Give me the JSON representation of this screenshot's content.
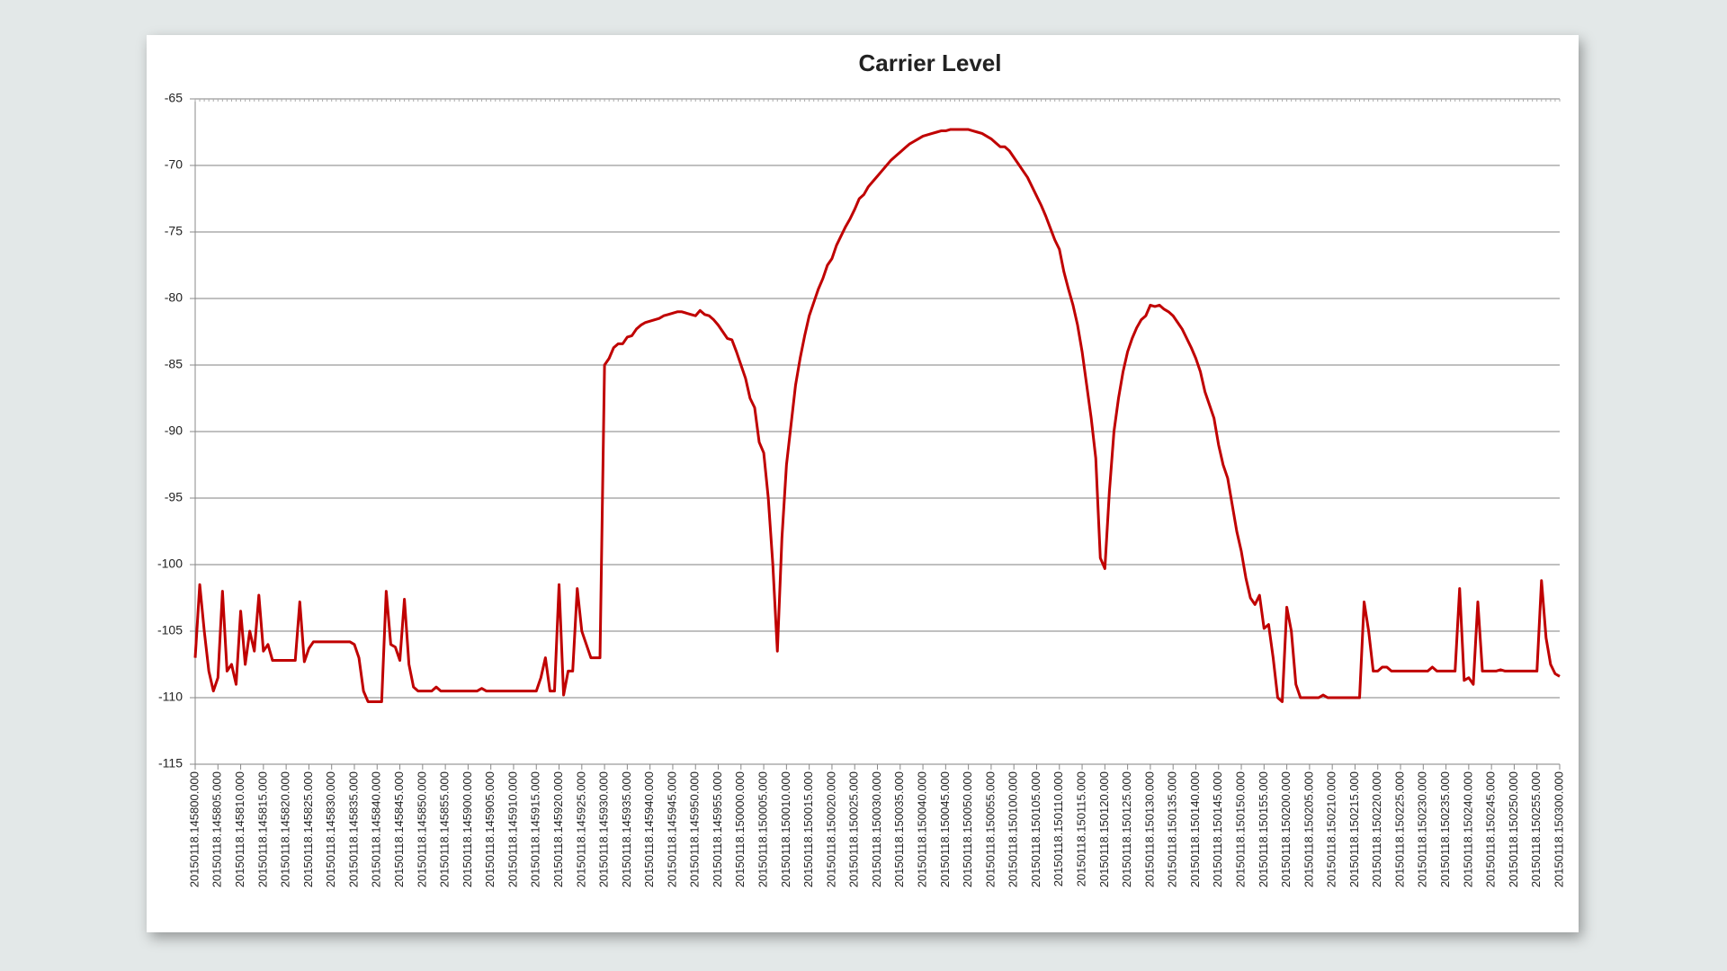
{
  "chart_data": {
    "type": "line",
    "title": "Carrier Level",
    "color": "#c00000",
    "ylim": [
      -115,
      -65
    ],
    "yticks": [
      -115,
      -110,
      -105,
      -100,
      -95,
      -90,
      -85,
      -80,
      -75,
      -70,
      -65
    ],
    "grid": true,
    "categories": [
      "20150118.145800.000",
      null,
      null,
      null,
      null,
      "20150118.145805.000",
      null,
      null,
      null,
      null,
      "20150118.145810.000",
      null,
      null,
      null,
      null,
      "20150118.145815.000",
      null,
      null,
      null,
      null,
      "20150118.145820.000",
      null,
      null,
      null,
      null,
      "20150118.145825.000",
      null,
      null,
      null,
      null,
      "20150118.145830.000",
      null,
      null,
      null,
      null,
      "20150118.145835.000",
      null,
      null,
      null,
      null,
      "20150118.145840.000",
      null,
      null,
      null,
      null,
      "20150118.145845.000",
      null,
      null,
      null,
      null,
      "20150118.145850.000",
      null,
      null,
      null,
      null,
      "20150118.145855.000",
      null,
      null,
      null,
      null,
      "20150118.145900.000",
      null,
      null,
      null,
      null,
      "20150118.145905.000",
      null,
      null,
      null,
      null,
      "20150118.145910.000",
      null,
      null,
      null,
      null,
      "20150118.145915.000",
      null,
      null,
      null,
      null,
      "20150118.145920.000",
      null,
      null,
      null,
      null,
      "20150118.145925.000",
      null,
      null,
      null,
      null,
      "20150118.145930.000",
      null,
      null,
      null,
      null,
      "20150118.145935.000",
      null,
      null,
      null,
      null,
      "20150118.145940.000",
      null,
      null,
      null,
      null,
      "20150118.145945.000",
      null,
      null,
      null,
      null,
      "20150118.145950.000",
      null,
      null,
      null,
      null,
      "20150118.145955.000",
      null,
      null,
      null,
      null,
      "20150118.150000.000",
      null,
      null,
      null,
      null,
      "20150118.150005.000",
      null,
      null,
      null,
      null,
      "20150118.150010.000",
      null,
      null,
      null,
      null,
      "20150118.150015.000",
      null,
      null,
      null,
      null,
      "20150118.150020.000",
      null,
      null,
      null,
      null,
      "20150118.150025.000",
      null,
      null,
      null,
      null,
      "20150118.150030.000",
      null,
      null,
      null,
      null,
      "20150118.150035.000",
      null,
      null,
      null,
      null,
      "20150118.150040.000",
      null,
      null,
      null,
      null,
      "20150118.150045.000",
      null,
      null,
      null,
      null,
      "20150118.150050.000",
      null,
      null,
      null,
      null,
      "20150118.150055.000",
      null,
      null,
      null,
      null,
      "20150118.150100.000",
      null,
      null,
      null,
      null,
      "20150118.150105.000",
      null,
      null,
      null,
      null,
      "20150118.150110.000",
      null,
      null,
      null,
      null,
      "20150118.150115.000",
      null,
      null,
      null,
      null,
      "20150118.150120.000",
      null,
      null,
      null,
      null,
      "20150118.150125.000",
      null,
      null,
      null,
      null,
      "20150118.150130.000",
      null,
      null,
      null,
      null,
      "20150118.150135.000",
      null,
      null,
      null,
      null,
      "20150118.150140.000",
      null,
      null,
      null,
      null,
      "20150118.150145.000",
      null,
      null,
      null,
      null,
      "20150118.150150.000",
      null,
      null,
      null,
      null,
      "20150118.150155.000",
      null,
      null,
      null,
      null,
      "20150118.150200.000",
      null,
      null,
      null,
      null,
      "20150118.150205.000",
      null,
      null,
      null,
      null,
      "20150118.150210.000",
      null,
      null,
      null,
      null,
      "20150118.150215.000",
      null,
      null,
      null,
      null,
      "20150118.150220.000",
      null,
      null,
      null,
      null,
      "20150118.150225.000",
      null,
      null,
      null,
      null,
      "20150118.150230.000",
      null,
      null,
      null,
      null,
      "20150118.150235.000",
      null,
      null,
      null,
      null,
      "20150118.150240.000",
      null,
      null,
      null,
      null,
      "20150118.150245.000",
      null,
      null,
      null,
      null,
      "20150118.150250.000",
      null,
      null,
      null,
      null,
      "20150118.150255.000",
      null,
      null,
      null,
      null,
      "20150118.150300.000"
    ],
    "values": [
      -107,
      -101.5,
      -105,
      -108,
      -109.5,
      -108.5,
      -102,
      -108,
      -107.5,
      -109,
      -103.5,
      -107.5,
      -105,
      -106.5,
      -102.3,
      -106.5,
      -106,
      -107.2,
      -107.2,
      -107.2,
      -107.2,
      -107.2,
      -107.2,
      -102.8,
      -107.3,
      -106.3,
      -105.8,
      -105.8,
      -105.8,
      -105.8,
      -105.8,
      -105.8,
      -105.8,
      -105.8,
      -105.8,
      -106,
      -107,
      -109.5,
      -110.3,
      -110.3,
      -110.3,
      -110.3,
      -102,
      -106,
      -106.2,
      -107.2,
      -102.6,
      -107.5,
      -109.2,
      -109.5,
      -109.5,
      -109.5,
      -109.5,
      -109.2,
      -109.5,
      -109.5,
      -109.5,
      -109.5,
      -109.5,
      -109.5,
      -109.5,
      -109.5,
      -109.5,
      -109.3,
      -109.5,
      -109.5,
      -109.5,
      -109.5,
      -109.5,
      -109.5,
      -109.5,
      -109.5,
      -109.5,
      -109.5,
      -109.5,
      -109.5,
      -108.5,
      -107,
      -109.5,
      -109.5,
      -101.5,
      -109.8,
      -108,
      -108,
      -101.8,
      -105,
      -106,
      -107,
      -107,
      -107,
      -85,
      -84.5,
      -83.7,
      -83.4,
      -83.4,
      -82.9,
      -82.8,
      -82.3,
      -82,
      -81.8,
      -81.7,
      -81.6,
      -81.5,
      -81.3,
      -81.2,
      -81.1,
      -81,
      -81,
      -81.1,
      -81.2,
      -81.3,
      -80.9,
      -81.2,
      -81.3,
      -81.6,
      -82,
      -82.5,
      -83,
      -83.1,
      -84,
      -85,
      -86,
      -87.5,
      -88.2,
      -90.8,
      -91.6,
      -95,
      -100,
      -106.5,
      -98,
      -92.5,
      -89.5,
      -86.5,
      -84.5,
      -82.8,
      -81.3,
      -80.3,
      -79.3,
      -78.5,
      -77.5,
      -77,
      -76,
      -75.3,
      -74.6,
      -74,
      -73.3,
      -72.5,
      -72.2,
      -71.6,
      -71.2,
      -70.8,
      -70.4,
      -70,
      -69.6,
      -69.3,
      -69,
      -68.7,
      -68.4,
      -68.2,
      -68,
      -67.8,
      -67.7,
      -67.6,
      -67.5,
      -67.4,
      -67.4,
      -67.3,
      -67.3,
      -67.3,
      -67.3,
      -67.3,
      -67.4,
      -67.5,
      -67.6,
      -67.8,
      -68,
      -68.3,
      -68.6,
      -68.6,
      -68.9,
      -69.4,
      -69.9,
      -70.4,
      -70.9,
      -71.6,
      -72.3,
      -73,
      -73.8,
      -74.7,
      -75.6,
      -76.3,
      -78,
      -79.3,
      -80.5,
      -82,
      -84,
      -86.5,
      -89,
      -92,
      -99.5,
      -100.3,
      -94.5,
      -90,
      -87.5,
      -85.5,
      -84,
      -83,
      -82.2,
      -81.6,
      -81.3,
      -80.5,
      -80.6,
      -80.5,
      -80.8,
      -81,
      -81.3,
      -81.8,
      -82.3,
      -83,
      -83.7,
      -84.5,
      -85.5,
      -87,
      -88,
      -89,
      -91,
      -92.5,
      -93.5,
      -95.5,
      -97.5,
      -99,
      -101,
      -102.5,
      -103,
      -102.3,
      -104.8,
      -104.5,
      -107,
      -110,
      -110.3,
      -103.2,
      -105,
      -109,
      -110,
      -110,
      -110,
      -110,
      -110,
      -109.8,
      -110,
      -110,
      -110,
      -110,
      -110,
      -110,
      -110,
      -110,
      -102.8,
      -105,
      -108,
      -108,
      -107.7,
      -107.7,
      -108,
      -108,
      -108,
      -108,
      -108,
      -108,
      -108,
      -108,
      -108,
      -107.7,
      -108,
      -108,
      -108,
      -108,
      -108,
      -101.8,
      -108.7,
      -108.5,
      -109,
      -102.8,
      -108,
      -108,
      -108,
      -108,
      -107.9,
      -108,
      -108,
      -108,
      -108,
      -108,
      -108,
      -108,
      -108,
      -101.2,
      -105.5,
      -107.5,
      -108.2,
      -108.4
    ]
  }
}
